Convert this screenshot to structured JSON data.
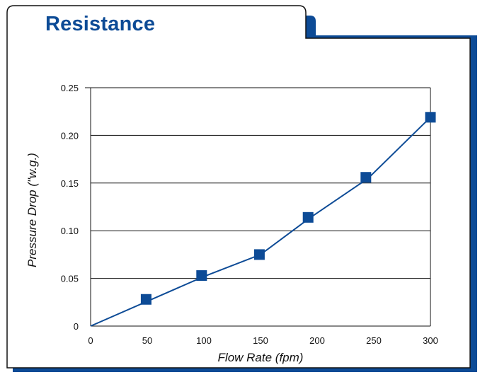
{
  "chart_data": {
    "type": "line",
    "title": "Resistance",
    "xlabel": "Flow Rate (fpm)",
    "ylabel": "Pressure Drop (\"w.g.)",
    "xlim": [
      0,
      300
    ],
    "ylim": [
      0,
      0.25
    ],
    "x_ticks": [
      "0",
      "50",
      "100",
      "150",
      "200",
      "250",
      "300"
    ],
    "x_tick_values": [
      0,
      50,
      100,
      150,
      200,
      250,
      300
    ],
    "y_ticks": [
      "0",
      "0.05",
      "0.10",
      "0.15",
      "0.20",
      "0.25"
    ],
    "y_tick_values": [
      0,
      0.05,
      0.1,
      0.15,
      0.2,
      0.25
    ],
    "grid": "horizontal",
    "series": [
      {
        "line_points": [
          [
            0,
            0
          ],
          [
            100,
            0.052
          ],
          [
            150,
            0.075
          ],
          [
            193,
            0.113
          ],
          [
            245,
            0.155
          ],
          [
            300,
            0.219
          ]
        ],
        "markers": [
          [
            49,
            0.028
          ],
          [
            98,
            0.053
          ],
          [
            149,
            0.075
          ],
          [
            192,
            0.114
          ],
          [
            243,
            0.156
          ],
          [
            300,
            0.219
          ]
        ]
      }
    ],
    "colors": {
      "series": "#0d4b96",
      "title": "#0d4b96",
      "shadow": "#0d4b96"
    }
  }
}
